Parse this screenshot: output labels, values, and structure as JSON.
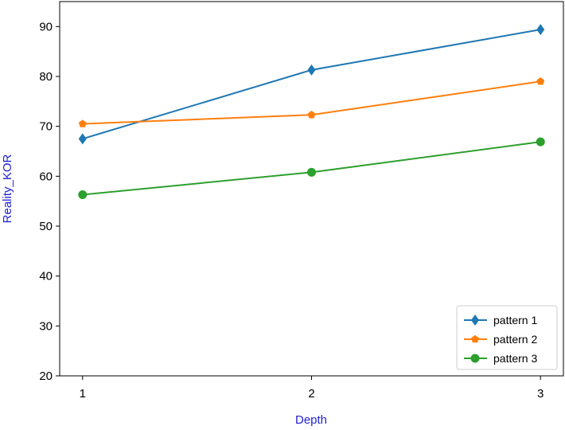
{
  "chart_data": {
    "type": "line",
    "x": [
      1,
      2,
      3
    ],
    "xticks": [
      "1",
      "2",
      "3"
    ],
    "yticks": [
      "20",
      "30",
      "40",
      "50",
      "60",
      "70",
      "80",
      "90"
    ],
    "xlabel": "Depth",
    "ylabel": "Reality_KOR",
    "xlim": [
      0.9,
      3.1
    ],
    "ylim": [
      20,
      95
    ],
    "grid": false,
    "legend_position": "lower-right",
    "series": [
      {
        "name": "pattern 1",
        "values": [
          67.5,
          81.3,
          89.4
        ],
        "color": "#1f77b4",
        "marker": "diamond"
      },
      {
        "name": "pattern 2",
        "values": [
          70.5,
          72.3,
          79.0
        ],
        "color": "#ff7f0e",
        "marker": "pentagon"
      },
      {
        "name": "pattern 3",
        "values": [
          56.3,
          60.8,
          66.9
        ],
        "color": "#2ca02c",
        "marker": "circle"
      }
    ],
    "label_color": "#1f1fd2"
  }
}
